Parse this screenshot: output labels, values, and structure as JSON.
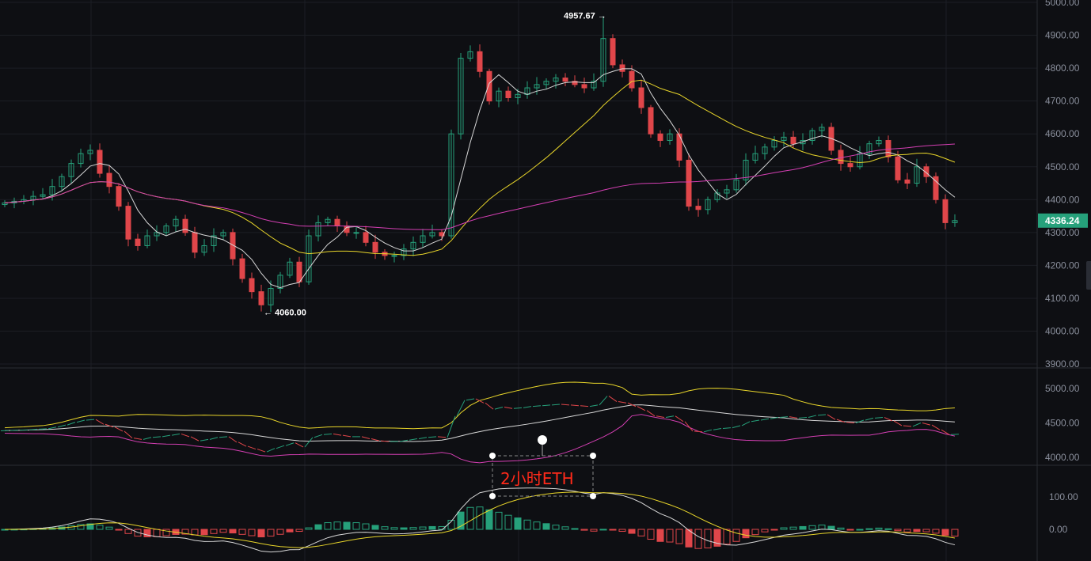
{
  "chart_data": {
    "type": "candlestick",
    "symbol_annotation": "2小时ETH",
    "price_axis": {
      "ticks": [
        "5000.00",
        "4900.00",
        "4800.00",
        "4700.00",
        "4600.00",
        "4500.00",
        "4400.00",
        "4300.00",
        "4200.00",
        "4100.00",
        "4000.00",
        "3900.00"
      ],
      "range": [
        3900,
        5000
      ]
    },
    "band_axis": {
      "ticks": [
        "5000.00",
        "4500.00",
        "4000.00"
      ],
      "range": [
        4000,
        5000
      ]
    },
    "macd_axis": {
      "ticks": [
        "100.00",
        "0.00"
      ]
    },
    "last_price": "4336.24",
    "high_marker": "4957.67 →",
    "low_marker": "← 4060.00",
    "closes": [
      4390,
      4395,
      4400,
      4410,
      4415,
      4440,
      4470,
      4510,
      4540,
      4550,
      4480,
      4440,
      4380,
      4280,
      4260,
      4290,
      4300,
      4320,
      4340,
      4300,
      4240,
      4260,
      4290,
      4300,
      4220,
      4160,
      4120,
      4080,
      4130,
      4170,
      4210,
      4150,
      4290,
      4330,
      4340,
      4320,
      4300,
      4300,
      4270,
      4240,
      4230,
      4230,
      4250,
      4270,
      4290,
      4300,
      4290,
      4600,
      4830,
      4850,
      4790,
      4700,
      4730,
      4710,
      4720,
      4740,
      4750,
      4760,
      4770,
      4760,
      4750,
      4740,
      4760,
      4890,
      4810,
      4790,
      4740,
      4680,
      4600,
      4580,
      4600,
      4520,
      4380,
      4370,
      4400,
      4420,
      4430,
      4460,
      4520,
      4540,
      4560,
      4580,
      4590,
      4570,
      4580,
      4610,
      4620,
      4550,
      4510,
      4500,
      4540,
      4570,
      4580,
      4530,
      4460,
      4450,
      4500,
      4470,
      4400,
      4330,
      4336.24
    ],
    "moving_averages": [
      {
        "period": 5,
        "color": "#d8d8d8"
      },
      {
        "period": 20,
        "color": "#e8d52a"
      },
      {
        "period": 60,
        "color": "#d43fb3"
      }
    ],
    "colors": {
      "up": "#26a17b",
      "down": "#e0464a",
      "background": "#0e0f13",
      "grid": "#1c1e24"
    }
  }
}
